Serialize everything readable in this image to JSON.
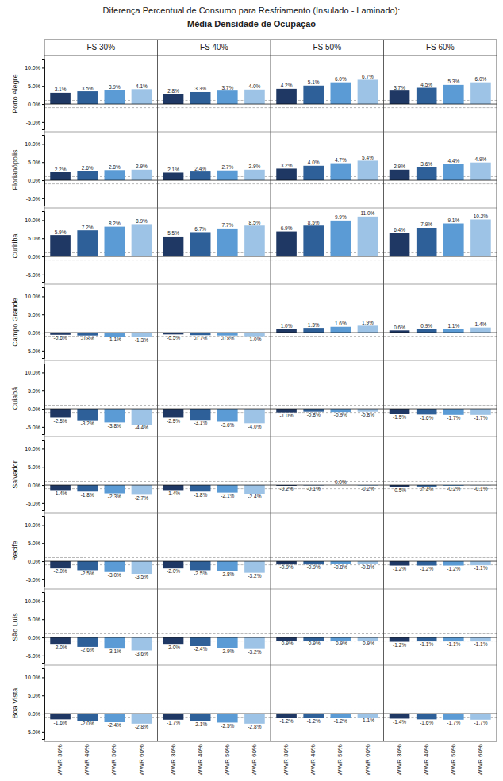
{
  "chart_data": {
    "type": "bar",
    "title": "Diferença Percentual de Consumo para Resfriamento (Insulado - Laminado):",
    "subtitle": "Média Densidade de Ocupação",
    "rows": [
      "Porto Alegre",
      "Florianópolis",
      "Curitiba",
      "Campo Grande",
      "Cuiabá",
      "Salvador",
      "Recife",
      "São Luís",
      "Boa Vista"
    ],
    "columns": [
      "FS 30%",
      "FS 40%",
      "FS 50%",
      "FS 60%"
    ],
    "categories": [
      "WWR 30%",
      "WWR 40%",
      "WWR 50%",
      "WWR 60%"
    ],
    "values": [
      [
        [
          3.1,
          3.5,
          3.9,
          4.1
        ],
        [
          2.8,
          3.3,
          3.7,
          4.0
        ],
        [
          4.2,
          5.1,
          6.0,
          6.7
        ],
        [
          3.7,
          4.5,
          5.3,
          6.0
        ]
      ],
      [
        [
          2.2,
          2.6,
          2.8,
          2.9
        ],
        [
          2.1,
          2.4,
          2.7,
          2.9
        ],
        [
          3.2,
          4.0,
          4.7,
          5.4
        ],
        [
          2.9,
          3.6,
          4.4,
          4.9
        ]
      ],
      [
        [
          5.9,
          7.2,
          8.2,
          8.9
        ],
        [
          5.5,
          6.7,
          7.7,
          8.5
        ],
        [
          6.9,
          8.5,
          9.9,
          11.0
        ],
        [
          6.4,
          7.9,
          9.1,
          10.2
        ]
      ],
      [
        [
          -0.6,
          -0.8,
          -1.1,
          -1.3
        ],
        [
          -0.5,
          -0.7,
          -0.8,
          -1.0
        ],
        [
          1.0,
          1.3,
          1.6,
          1.9
        ],
        [
          0.6,
          0.9,
          1.1,
          1.4
        ]
      ],
      [
        [
          -2.5,
          -3.2,
          -3.8,
          -4.4
        ],
        [
          -2.5,
          -3.1,
          -3.6,
          -4.0
        ],
        [
          -1.0,
          -0.8,
          -0.9,
          -0.8
        ],
        [
          -1.5,
          -1.6,
          -1.7,
          -1.7
        ]
      ],
      [
        [
          -1.4,
          -1.8,
          -2.3,
          -2.7
        ],
        [
          -1.4,
          -1.8,
          -2.1,
          -2.4
        ],
        [
          -0.2,
          -0.1,
          0.0,
          -0.2
        ],
        [
          -0.5,
          -0.4,
          -0.2,
          -0.1
        ]
      ],
      [
        [
          -2.0,
          -2.5,
          -3.0,
          -3.5
        ],
        [
          -2.0,
          -2.5,
          -2.8,
          -3.2
        ],
        [
          -0.9,
          -0.9,
          -0.8,
          -0.8
        ],
        [
          -1.2,
          -1.2,
          -1.2,
          -1.1
        ]
      ],
      [
        [
          -2.0,
          -2.6,
          -3.1,
          -3.6
        ],
        [
          -2.0,
          -2.4,
          -2.9,
          -3.2
        ],
        [
          -0.9,
          -0.9,
          -0.9,
          -0.9
        ],
        [
          -1.2,
          -1.1,
          -1.1,
          -1.1
        ]
      ],
      [
        [
          -1.6,
          -2.0,
          -2.4,
          -2.8
        ],
        [
          -1.7,
          -2.1,
          -2.5,
          -2.8
        ],
        [
          -1.2,
          -1.2,
          -1.2,
          -1.1
        ],
        [
          -1.4,
          -1.6,
          -1.7,
          -1.7
        ]
      ]
    ],
    "value_labels": [
      [
        [
          "3.1%",
          "3.5%",
          "3.9%",
          "4.1%"
        ],
        [
          "2.8%",
          "3.3%",
          "3.7%",
          "4.0%"
        ],
        [
          "4.2%",
          "5.1%",
          "6.0%",
          "6.7%"
        ],
        [
          "3.7%",
          "4.5%",
          "5.3%",
          "6.0%"
        ]
      ],
      [
        [
          "2.2%",
          "2.6%",
          "2.8%",
          "2.9%"
        ],
        [
          "2.1%",
          "2.4%",
          "2.7%",
          "2.9%"
        ],
        [
          "3.2%",
          "4.0%",
          "4.7%",
          "5.4%"
        ],
        [
          "2.9%",
          "3.6%",
          "4.4%",
          "4.9%"
        ]
      ],
      [
        [
          "5.9%",
          "7.2%",
          "8.2%",
          "8.9%"
        ],
        [
          "5.5%",
          "6.7%",
          "7.7%",
          "8.5%"
        ],
        [
          "6.9%",
          "8.5%",
          "9.9%",
          "11.0%"
        ],
        [
          "6.4%",
          "7.9%",
          "9.1%",
          "10.2%"
        ]
      ],
      [
        [
          "-0.6%",
          "-0.8%",
          "-1.1%",
          "-1.3%"
        ],
        [
          "-0.5%",
          "-0.7%",
          "-0.8%",
          "-1.0%"
        ],
        [
          "1.0%",
          "1.3%",
          "1.6%",
          "1.9%"
        ],
        [
          "0.6%",
          "0.9%",
          "1.1%",
          "1.4%"
        ]
      ],
      [
        [
          "-2.5%",
          "-3.2%",
          "-3.8%",
          "-4.4%"
        ],
        [
          "-2.5%",
          "-3.1%",
          "-3.6%",
          "-4.0%"
        ],
        [
          "-1.0%",
          "-0.8%",
          "-0.9%",
          "-0.8%"
        ],
        [
          "-1.5%",
          "-1.6%",
          "-1.7%",
          "-1.7%"
        ]
      ],
      [
        [
          "-1.4%",
          "-1.8%",
          "-2.3%",
          "-2.7%"
        ],
        [
          "-1.4%",
          "-1.8%",
          "-2.1%",
          "-2.4%"
        ],
        [
          "-0.2%",
          "-0.1%",
          "0.0%",
          "-0.2%"
        ],
        [
          "-0.5%",
          "-0.4%",
          "-0.2%",
          "-0.1%"
        ]
      ],
      [
        [
          "-2.0%",
          "-2.5%",
          "-3.0%",
          "-3.5%"
        ],
        [
          "-2.0%",
          "-2.5%",
          "-2.8%",
          "-3.2%"
        ],
        [
          "-0.9%",
          "-0.9%",
          "-0.8%",
          "-0.8%"
        ],
        [
          "-1.2%",
          "-1.2%",
          "-1.2%",
          "-1.1%"
        ]
      ],
      [
        [
          "-2.0%",
          "-2.6%",
          "-3.1%",
          "-3.6%"
        ],
        [
          "-2.0%",
          "-2.4%",
          "-2.9%",
          "-3.2%"
        ],
        [
          "-0.9%",
          "-0.9%",
          "-0.9%",
          "-0.9%"
        ],
        [
          "-1.2%",
          "-1.1%",
          "-1.1%",
          "-1.1%"
        ]
      ],
      [
        [
          "-1.6%",
          "-2.0%",
          "-2.4%",
          "-2.8%"
        ],
        [
          "-1.7%",
          "-2.1%",
          "-2.5%",
          "-2.8%"
        ],
        [
          "-1.2%",
          "-1.2%",
          "-1.2%",
          "-1.1%"
        ],
        [
          "-1.4%",
          "-1.6%",
          "-1.7%",
          "-1.7%"
        ]
      ]
    ],
    "colors": [
      "#1f3864",
      "#2e6099",
      "#5b9bd5",
      "#9dc3e6"
    ],
    "ylim": [
      -7.0,
      12.5
    ],
    "yticks": [
      {
        "value": -5.0,
        "label": "-5.0%"
      },
      {
        "value": 0.0,
        "label": "0.0%"
      },
      {
        "value": 5.0,
        "label": "5.0%"
      },
      {
        "value": 10.0,
        "label": "10.0%"
      }
    ],
    "reference_lines": [
      1.0,
      -1.0
    ]
  }
}
